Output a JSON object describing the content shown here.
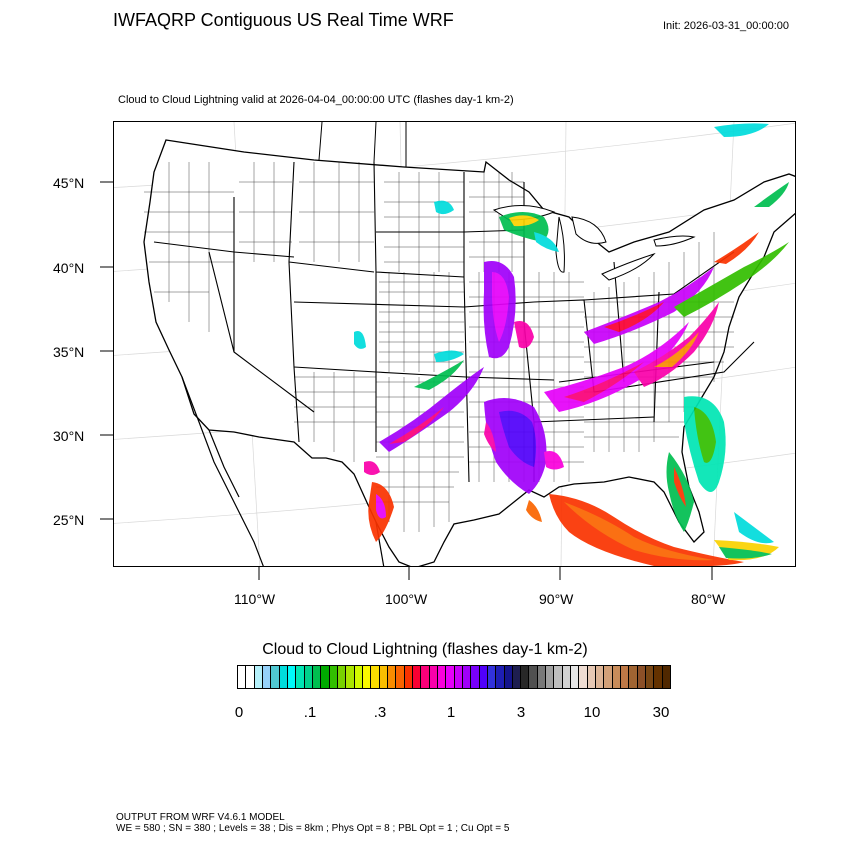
{
  "header": {
    "title": "IWFAQRP Contiguous US Real Time WRF",
    "init": "Init: 2026-03-31_00:00:00",
    "subtitle": "Cloud to Cloud Lightning valid at 2026-04-04_00:00:00 UTC   (flashes day-1 km-2)"
  },
  "map": {
    "lat_labels": [
      "45°N",
      "40°N",
      "35°N",
      "30°N",
      "25°N"
    ],
    "lon_labels": [
      "110°W",
      "100°W",
      "90°W",
      "80°W"
    ]
  },
  "colorbar": {
    "title": "Cloud to Cloud Lightning  (flashes day-1 km-2)",
    "ticks": [
      "0",
      ".1",
      ".3",
      "1",
      "3",
      "10",
      "30"
    ],
    "colors": [
      "#ffffff",
      "#ffffff",
      "#b4f0fa",
      "#96d2fa",
      "#50c8d2",
      "#00dcdc",
      "#00fafa",
      "#00e6b4",
      "#00d28c",
      "#00be50",
      "#00aa00",
      "#32be00",
      "#78d200",
      "#aae600",
      "#d2fa00",
      "#fafa00",
      "#fadc00",
      "#fabe00",
      "#fa8c00",
      "#fa6400",
      "#fa3200",
      "#fa0032",
      "#fa0078",
      "#fa00aa",
      "#fa00dc",
      "#e600fa",
      "#c800fa",
      "#a000fa",
      "#7800fa",
      "#5000fa",
      "#3232dc",
      "#1e1eb4",
      "#14148c",
      "#1e1e50",
      "#282828",
      "#505050",
      "#787878",
      "#a0a0a0",
      "#bebebe",
      "#d2d2d2",
      "#e6e6e6",
      "#eedcd2",
      "#e6c8b4",
      "#dcb496",
      "#d2a078",
      "#c88c5a",
      "#be7846",
      "#a06432",
      "#8c5028",
      "#784614",
      "#643200",
      "#502800"
    ]
  },
  "footer": {
    "line1": "OUTPUT FROM WRF V4.6.1 MODEL",
    "line2": "WE = 580 ; SN = 380 ; Levels = 38 ; Dis = 8km ; Phys Opt = 8 ; PBL Opt = 1 ; Cu Opt = 5"
  }
}
